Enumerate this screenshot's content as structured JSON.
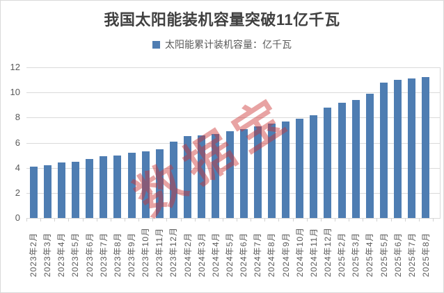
{
  "title": "我国太阳能装机容量突破11亿千瓦",
  "legend": {
    "label": "太阳能累计装机容量：亿千瓦"
  },
  "watermark": {
    "text": "数据宝"
  },
  "colors": {
    "bar": "#4E7DB2",
    "gridline": "#D9D9D9",
    "axis_text": "#595959",
    "title_text": "#404040",
    "watermark": "rgba(204,51,51,0.45)"
  },
  "y_axis": {
    "min": 0,
    "max": 12,
    "ticks": [
      12,
      10,
      8,
      6,
      4,
      2,
      0
    ]
  },
  "chart_data": {
    "type": "bar",
    "title": "我国太阳能装机容量突破11亿千瓦",
    "series_name": "太阳能累计装机容量：亿千瓦",
    "xlabel": "",
    "ylabel": "",
    "ylim": [
      0,
      12
    ],
    "grid": true,
    "legend_position": "top",
    "categories": [
      "2023年2月",
      "2023年3月",
      "2023年4月",
      "2023年5月",
      "2023年6月",
      "2023年7月",
      "2023年8月",
      "2023年9月",
      "2023年10月",
      "2023年11月",
      "2023年12月",
      "2024年2月",
      "2024年3月",
      "2024年4月",
      "2024年5月",
      "2024年6月",
      "2024年7月",
      "2024年8月",
      "2024年9月",
      "2024年10月",
      "2024年11月",
      "2024年12月",
      "2025年2月",
      "2025年3月",
      "2025年4月",
      "2025年5月",
      "2025年6月",
      "2025年7月",
      "2025年8月"
    ],
    "values": [
      4.1,
      4.2,
      4.4,
      4.5,
      4.7,
      4.9,
      5.0,
      5.2,
      5.3,
      5.5,
      6.1,
      6.5,
      6.6,
      6.7,
      6.9,
      7.1,
      7.3,
      7.5,
      7.7,
      7.9,
      8.2,
      8.8,
      9.2,
      9.4,
      9.9,
      10.8,
      11.0,
      11.1,
      11.2
    ]
  }
}
